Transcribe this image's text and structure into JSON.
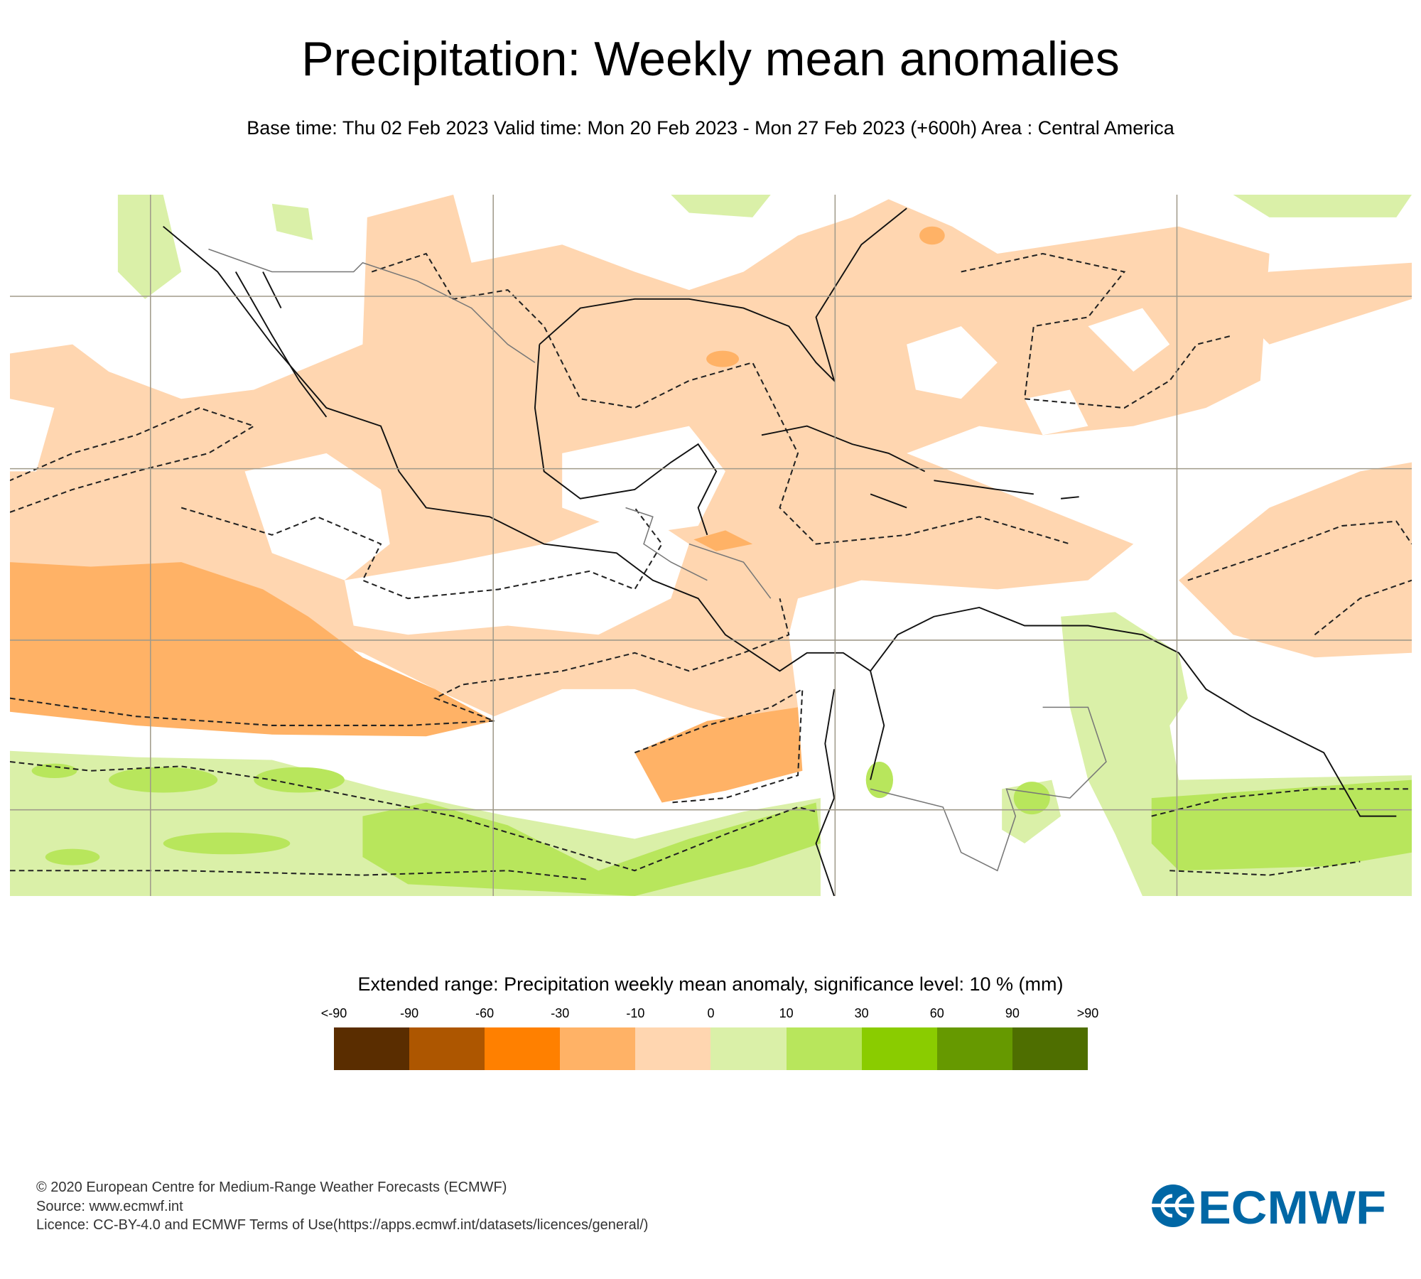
{
  "header": {
    "title": "Precipitation: Weekly mean anomalies",
    "subtitle": "Base time: Thu 02 Feb 2023 Valid time: Mon 20 Feb 2023 - Mon 27 Feb 2023 (+600h) Area : Central America"
  },
  "legend": {
    "title": "Extended range: Precipitation weekly mean anomaly, significance level: 10 % (mm)",
    "ticks": [
      "<-90",
      "-90",
      "-60",
      "-30",
      "-10",
      "0",
      "10",
      "30",
      "60",
      "90",
      ">90"
    ],
    "colors": [
      "#5a2d00",
      "#ad5600",
      "#ff8000",
      "#ffb266",
      "#ffd6b0",
      "#daf0a8",
      "#b8e65c",
      "#8acc00",
      "#669900",
      "#4e6e00"
    ]
  },
  "footer": {
    "line1": "© 2020 European Centre for Medium-Range Weather Forecasts (ECMWF)",
    "line2": "Source: www.ecmwf.int",
    "line3": "Licence: CC-BY-4.0 and ECMWF Terms of Use(https://apps.ecmwf.int/datasets/licences/general/)"
  },
  "logo": {
    "text": "ECMWF",
    "color": "#0067a5"
  }
}
